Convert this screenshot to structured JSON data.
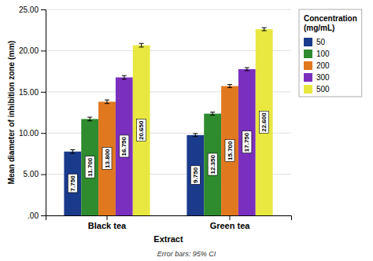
{
  "chart_data": {
    "type": "bar",
    "categories": [
      "Black tea",
      "Green tea"
    ],
    "series": [
      {
        "name": "50",
        "color": "#1a3a8c",
        "values": [
          7.75,
          9.75
        ],
        "value_labels": [
          "7.750",
          "9.750"
        ],
        "errors": [
          0.22,
          0.18
        ]
      },
      {
        "name": "100",
        "color": "#2e8b2e",
        "values": [
          11.7,
          12.35
        ],
        "value_labels": [
          "11.700",
          "12.350"
        ],
        "errors": [
          0.22,
          0.18
        ]
      },
      {
        "name": "200",
        "color": "#e07820",
        "values": [
          13.8,
          15.7
        ],
        "value_labels": [
          "13.800",
          "15.700"
        ],
        "errors": [
          0.22,
          0.18
        ]
      },
      {
        "name": "300",
        "color": "#7b2fbe",
        "values": [
          16.75,
          17.75
        ],
        "value_labels": [
          "16.750",
          "17.750"
        ],
        "errors": [
          0.22,
          0.18
        ]
      },
      {
        "name": "500",
        "color": "#e8e840",
        "values": [
          20.65,
          22.6
        ],
        "value_labels": [
          "20.650",
          "22.600"
        ],
        "errors": [
          0.22,
          0.18
        ]
      }
    ],
    "xlabel": "Extract",
    "ylabel": "Mean diameter of inhibition zone (mm)",
    "legend_title": "Concentration\n(mg/mL)",
    "footnote": "Error bars: 95% CI",
    "ylim": [
      0,
      25
    ],
    "yticks": [
      {
        "value": 0,
        "label": ".00"
      },
      {
        "value": 5,
        "label": "5.00"
      },
      {
        "value": 10,
        "label": "10.00"
      },
      {
        "value": 15,
        "label": "15.00"
      },
      {
        "value": 20,
        "label": "20.00"
      },
      {
        "value": 25,
        "label": "25.00"
      }
    ],
    "grid": true,
    "legend": "right",
    "data_labels": true
  }
}
